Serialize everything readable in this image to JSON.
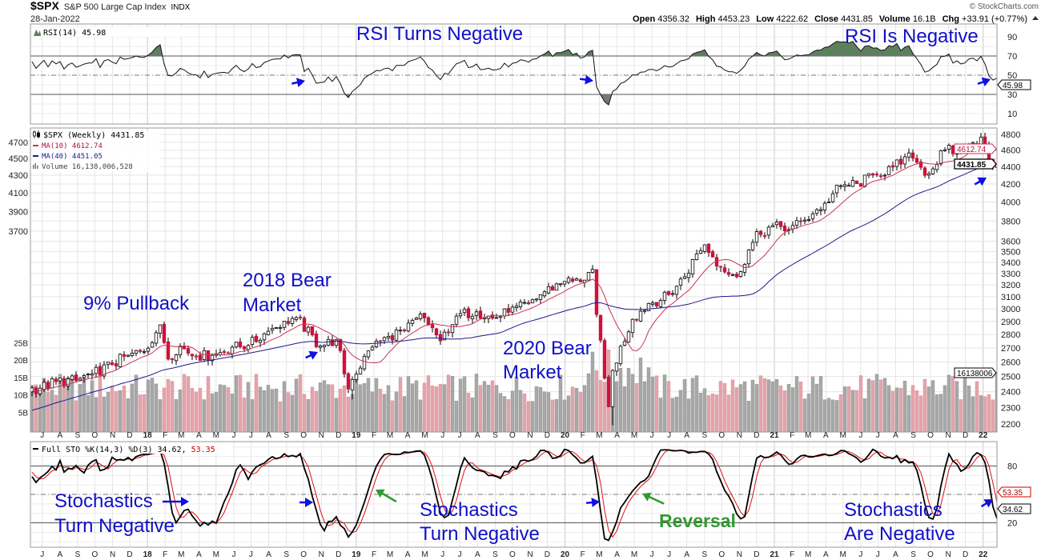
{
  "header": {
    "symbol": "$SPX",
    "name": "S&P 500 Large Cap Index",
    "exchange": "INDX",
    "date": "28-Jan-2022",
    "copyright": "© StockCharts.com",
    "ohlc": [
      {
        "label": "Open",
        "value": "4356.32"
      },
      {
        "label": "High",
        "value": "4453.23"
      },
      {
        "label": "Low",
        "value": "4222.62"
      },
      {
        "label": "Close",
        "value": "4431.85"
      },
      {
        "label": "Volume",
        "value": "16.1B"
      },
      {
        "label": "Chg",
        "value": "+33.91 (+0.77%)"
      }
    ]
  },
  "legends": {
    "rsi": "RSI(14) 45.98",
    "price": "$SPX (Weekly) 4431.85",
    "ma10": "MA(10) 4612.74",
    "ma40": "MA(40) 4451.05",
    "volume": "Volume 16,138,006,528",
    "stoch_a": "Full STO %K(14,3) %D(3) 34.62,",
    "stoch_b": "53.35"
  },
  "badges": {
    "rsi": "45.98",
    "ma10": "4612.74",
    "close": "4431.85",
    "volume": "16138006",
    "stoch_d": "53.35",
    "stoch_k": "34.62"
  },
  "annotations": {
    "rsi_turns": "RSI Turns Negative",
    "rsi_is": "RSI Is Negative",
    "pullback": "9% Pullback",
    "bear2018_a": "2018 Bear",
    "bear2018_b": "Market",
    "bear2020_a": "2020 Bear",
    "bear2020_b": "Market",
    "sto1_a": "Stochastics",
    "sto1_b": "Turn Negative",
    "sto2_a": "Stochastics",
    "sto2_b": "Turn Negative",
    "reversal": "Reversal",
    "sto3_a": "Stochastics",
    "sto3_b": "Are Negative"
  },
  "colors": {
    "annotation": "#1010c8",
    "reversal": "#2f9a2f",
    "down_candle": "#d0103a",
    "ma10": "#cc3355",
    "ma40": "#1a1a8c",
    "rsi_fill_high": "#5e7f5e",
    "volume_up": "#a8a8a8",
    "volume_down": "#e6a3ab"
  },
  "chart_data": {
    "type": "candlestick",
    "title": "$SPX S&P 500 Large Cap Index (Weekly)",
    "period": "weekly",
    "last_date": "2022-01-28",
    "weeks_shown": 242,
    "price_axis": {
      "scale": "log",
      "range": [
        2200,
        4800
      ],
      "ticks": [
        2200,
        2300,
        2400,
        2500,
        2600,
        2700,
        2800,
        2900,
        3000,
        3100,
        3200,
        3300,
        3400,
        3500,
        3600,
        3700,
        3800,
        3900,
        4000,
        4100,
        4200,
        4300,
        4400,
        4500,
        4600,
        4700,
        4800
      ]
    },
    "rsi_axis": {
      "range": [
        0,
        100
      ],
      "ticks": [
        10,
        30,
        50,
        70,
        90
      ]
    },
    "stoch_axis": {
      "range": [
        0,
        100
      ],
      "ticks": [
        20,
        80
      ]
    },
    "volume_axis": {
      "ticks": [
        "5B",
        "10B",
        "15B",
        "20B",
        "25B"
      ]
    },
    "x_ticks_note": "month initials, years at January",
    "close_anchors": [
      [
        "2016-12-30",
        2239
      ],
      [
        "2017-01-31",
        2279
      ],
      [
        "2017-02-28",
        2364
      ],
      [
        "2017-03-31",
        2363
      ],
      [
        "2017-04-28",
        2384
      ],
      [
        "2017-05-31",
        2412
      ],
      [
        "2017-06-30",
        2423
      ],
      [
        "2017-07-31",
        2470
      ],
      [
        "2017-08-31",
        2472
      ],
      [
        "2017-09-29",
        2519
      ],
      [
        "2017-10-31",
        2575
      ],
      [
        "2017-11-30",
        2647
      ],
      [
        "2017-12-29",
        2674
      ],
      [
        "2018-01-26",
        2873
      ],
      [
        "2018-02-09",
        2620
      ],
      [
        "2018-02-28",
        2714
      ],
      [
        "2018-03-29",
        2641
      ],
      [
        "2018-04-30",
        2648
      ],
      [
        "2018-05-31",
        2705
      ],
      [
        "2018-06-29",
        2718
      ],
      [
        "2018-07-31",
        2816
      ],
      [
        "2018-08-31",
        2902
      ],
      [
        "2018-09-21",
        2930
      ],
      [
        "2018-10-31",
        2712
      ],
      [
        "2018-11-30",
        2760
      ],
      [
        "2018-12-21",
        2417
      ],
      [
        "2018-12-31",
        2507
      ],
      [
        "2019-01-31",
        2704
      ],
      [
        "2019-02-28",
        2784
      ],
      [
        "2019-03-29",
        2834
      ],
      [
        "2019-04-30",
        2946
      ],
      [
        "2019-05-31",
        2752
      ],
      [
        "2019-06-28",
        2942
      ],
      [
        "2019-07-31",
        2980
      ],
      [
        "2019-08-30",
        2926
      ],
      [
        "2019-09-30",
        2977
      ],
      [
        "2019-10-31",
        3038
      ],
      [
        "2019-11-29",
        3141
      ],
      [
        "2019-12-31",
        3231
      ],
      [
        "2020-01-31",
        3226
      ],
      [
        "2020-02-21",
        3338
      ],
      [
        "2020-02-28",
        2954
      ],
      [
        "2020-03-20",
        2305
      ],
      [
        "2020-03-27",
        2541
      ],
      [
        "2020-04-30",
        2912
      ],
      [
        "2020-05-29",
        3044
      ],
      [
        "2020-06-30",
        3100
      ],
      [
        "2020-07-31",
        3271
      ],
      [
        "2020-09-02",
        3580
      ],
      [
        "2020-09-30",
        3363
      ],
      [
        "2020-10-30",
        3270
      ],
      [
        "2020-11-30",
        3622
      ],
      [
        "2020-12-31",
        3756
      ],
      [
        "2021-01-29",
        3714
      ],
      [
        "2021-02-26",
        3811
      ],
      [
        "2021-03-31",
        3973
      ],
      [
        "2021-04-30",
        4181
      ],
      [
        "2021-05-28",
        4204
      ],
      [
        "2021-06-30",
        4298
      ],
      [
        "2021-07-30",
        4395
      ],
      [
        "2021-08-31",
        4523
      ],
      [
        "2021-09-30",
        4308
      ],
      [
        "2021-10-29",
        4605
      ],
      [
        "2021-11-30",
        4567
      ],
      [
        "2021-12-31",
        4766
      ],
      [
        "2022-01-07",
        4677
      ],
      [
        "2022-01-21",
        4398
      ],
      [
        "2022-01-28",
        4431.85
      ]
    ],
    "extreme_lows": [
      [
        "2018-12-24",
        2351
      ],
      [
        "2020-03-23",
        2192
      ],
      [
        "2022-01-24",
        4222.62
      ]
    ],
    "last_values": {
      "close": 4431.85,
      "ma10": 4612.74,
      "ma40": 4451.05,
      "rsi14": 45.98,
      "stoch_k": 34.62,
      "stoch_d": 53.35,
      "volume": 16138006528
    }
  }
}
